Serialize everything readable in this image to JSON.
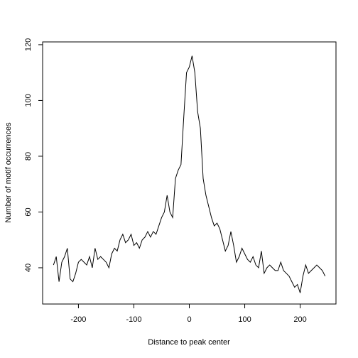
{
  "chart_data": {
    "type": "line",
    "x_label": "Distance to peak center",
    "y_label": "Number of motif occurrences",
    "x": [
      -245,
      -240,
      -235,
      -230,
      -225,
      -220,
      -215,
      -210,
      -205,
      -200,
      -195,
      -190,
      -185,
      -180,
      -175,
      -170,
      -165,
      -160,
      -155,
      -150,
      -145,
      -140,
      -135,
      -130,
      -125,
      -120,
      -115,
      -110,
      -105,
      -100,
      -95,
      -90,
      -85,
      -80,
      -75,
      -70,
      -65,
      -60,
      -55,
      -50,
      -45,
      -40,
      -35,
      -30,
      -25,
      -20,
      -15,
      -10,
      -5,
      0,
      5,
      10,
      15,
      20,
      25,
      30,
      35,
      40,
      45,
      50,
      55,
      60,
      65,
      70,
      75,
      80,
      85,
      90,
      95,
      100,
      105,
      110,
      115,
      120,
      125,
      130,
      135,
      140,
      145,
      150,
      155,
      160,
      165,
      170,
      175,
      180,
      185,
      190,
      195,
      200,
      205,
      210,
      215,
      220,
      225,
      230,
      235,
      240,
      245
    ],
    "series": [
      {
        "color": "#000000",
        "values": [
          41,
          44,
          35,
          42,
          44,
          47,
          36,
          35,
          38,
          42,
          43,
          42,
          41,
          44,
          40,
          47,
          43,
          44,
          43,
          42,
          40,
          45,
          47,
          46,
          50,
          52,
          49,
          50,
          52,
          48,
          49,
          47,
          50,
          51,
          53,
          51,
          53,
          52,
          55,
          58,
          60,
          66,
          60,
          58,
          72,
          75,
          77,
          94,
          110,
          112,
          116,
          110,
          96,
          90,
          72,
          66,
          62,
          58,
          55,
          56,
          54,
          50,
          46,
          48,
          53,
          48,
          42,
          44,
          47,
          45,
          43,
          42,
          44,
          41,
          40,
          46,
          38,
          40,
          41,
          40,
          39,
          39,
          42,
          39,
          38,
          37,
          35,
          33,
          34,
          31,
          37,
          41,
          38,
          39,
          40,
          41,
          40,
          39,
          37
        ]
      }
    ],
    "xlim": [
      -264.6,
      264.6
    ],
    "ylim": [
      27,
      121
    ],
    "xticks": [
      -200,
      -100,
      0,
      100,
      200
    ],
    "yticks": [
      40,
      60,
      80,
      100,
      120
    ]
  }
}
